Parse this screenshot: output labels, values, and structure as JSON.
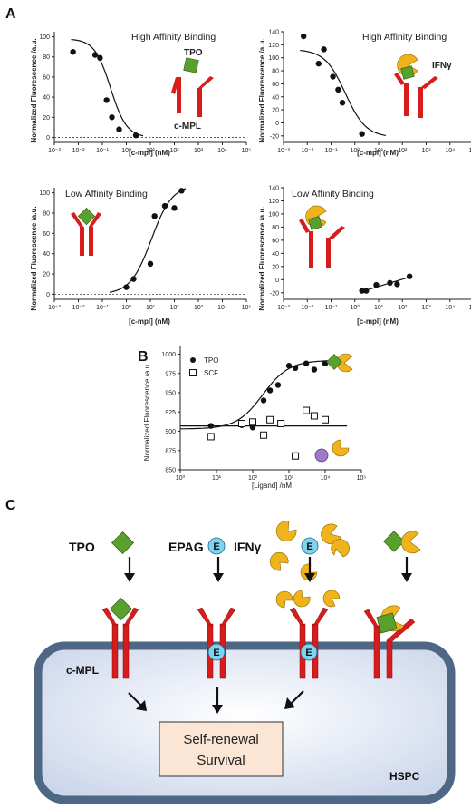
{
  "labels": {
    "panel_a": "A",
    "panel_b": "B",
    "panel_c": "C"
  },
  "panel_a": {
    "xlabel": "[c-mpl] (nM)",
    "ylabel": "Normalized Fluorescence /a.u.",
    "x_tick_labels": [
      "10⁻³",
      "10⁻²",
      "10⁻¹",
      "10⁰",
      "10¹",
      "10²",
      "10³",
      "10⁴",
      "10⁵"
    ],
    "titles": [
      "High Affinity Binding",
      "High Affinity Binding",
      "Low Affinity Binding",
      "Low Affinity Binding"
    ],
    "mol_labels": {
      "tpo": "TPO",
      "cmpl": "c-MPL",
      "ifng": "IFNγ"
    }
  },
  "panel_b": {
    "xlabel": "[Ligand] /nM",
    "ylabel": "Normalized Fluorescence /a.u.",
    "x_tick_labels": [
      "10⁰",
      "10¹",
      "10²",
      "10³",
      "10⁴",
      "10⁵"
    ],
    "legend": [
      "TPO",
      "SCF"
    ]
  },
  "panel_c": {
    "ligands": {
      "tpo": "TPO",
      "epag": "EPAG",
      "ifng": "IFNγ",
      "e_glyph": "E"
    },
    "receptor_label": "c-MPL",
    "cell_label": "HSPC",
    "outcome_line1": "Self-renewal",
    "outcome_line2": "Survival"
  },
  "colors": {
    "receptor": "#d81c1c",
    "tpo": "#5aa02c",
    "ifng": "#f0b31c",
    "epag": "#7fd3ee",
    "membrane": "#4e6784",
    "cell": "#dce4f2",
    "box": "#fbe6d6"
  },
  "chart_data": [
    {
      "type": "scatter",
      "title": "High Affinity Binding",
      "xlabel": "[c-mpl] (nM)",
      "ylabel": "Normalized Fluorescence /a.u.",
      "xscale": "log",
      "xlim": [
        0.001,
        100000
      ],
      "ylim": [
        -5,
        105
      ],
      "yticks": [
        0,
        20,
        40,
        60,
        80,
        100
      ],
      "dotted_zero_line": true,
      "x": [
        0.006,
        0.05,
        0.08,
        0.15,
        0.25,
        0.5,
        2.5
      ],
      "y": [
        85,
        82,
        79,
        37,
        20,
        8,
        2
      ],
      "fit": {
        "type": "sigmoid_decreasing",
        "top": 98,
        "bottom": 0,
        "ec50": 0.22,
        "hill": 1.3,
        "x_range": [
          0.005,
          5
        ]
      }
    },
    {
      "type": "scatter",
      "title": "High Affinity Binding",
      "xlabel": "[c-mpl] (nM)",
      "ylabel": "Normalized Fluorescence /a.u.",
      "xscale": "log",
      "xlim": [
        0.001,
        100000
      ],
      "ylim": [
        -30,
        140
      ],
      "yticks": [
        -20,
        0,
        20,
        40,
        60,
        80,
        100,
        120,
        140
      ],
      "x": [
        0.007,
        0.03,
        0.05,
        0.12,
        0.2,
        0.3,
        2.0
      ],
      "y": [
        133,
        91,
        113,
        71,
        51,
        31,
        -17
      ],
      "fit": {
        "type": "sigmoid_decreasing",
        "top": 113,
        "bottom": -22,
        "ec50": 0.4,
        "hill": 1.0,
        "x_range": [
          0.005,
          20
        ]
      }
    },
    {
      "type": "scatter",
      "title": "Low Affinity Binding",
      "xlabel": "[c-mpl] (nM)",
      "ylabel": "Normalized Fluorescence /a.u.",
      "xscale": "log",
      "xlim": [
        0.001,
        100000
      ],
      "ylim": [
        -5,
        105
      ],
      "yticks": [
        0,
        20,
        40,
        60,
        80,
        100
      ],
      "dotted_zero_line": true,
      "x": [
        1.0,
        2.0,
        10,
        15,
        40,
        100,
        200
      ],
      "y": [
        7,
        15,
        30,
        77,
        87,
        85,
        102
      ],
      "fit": {
        "type": "sigmoid_increasing",
        "top": 108,
        "bottom": 0,
        "ec50": 11,
        "hill": 1.0,
        "x_range": [
          0.2,
          300
        ]
      }
    },
    {
      "type": "scatter",
      "title": "Low Affinity Binding",
      "xlabel": "[c-mpl] (nM)",
      "ylabel": "Normalized Fluorescence /a.u.",
      "xscale": "log",
      "xlim": [
        0.001,
        100000
      ],
      "ylim": [
        -30,
        140
      ],
      "yticks": [
        -20,
        0,
        20,
        40,
        60,
        80,
        100,
        120,
        140
      ],
      "x": [
        2,
        3,
        8,
        30,
        60,
        200
      ],
      "y": [
        -17,
        -17,
        -8,
        -5,
        -7,
        5
      ],
      "fit": {
        "type": "linear_log",
        "x_range": [
          2,
          200
        ],
        "y_range": [
          -18,
          4
        ]
      }
    },
    {
      "type": "scatter",
      "title": "",
      "xlabel": "[Ligand] /nM",
      "ylabel": "Normalized Fluorescence /a.u.",
      "xscale": "log",
      "xlim": [
        1,
        100000
      ],
      "ylim": [
        850,
        1010
      ],
      "yticks": [
        850,
        875,
        900,
        925,
        950,
        975,
        1000
      ],
      "legend": "top-left",
      "series": [
        {
          "name": "TPO",
          "marker": "filled-circle",
          "x": [
            7,
            50,
            100,
            200,
            300,
            500,
            1000,
            1500,
            3000,
            5000,
            10000
          ],
          "y": [
            907,
            908,
            905,
            940,
            953,
            960,
            985,
            982,
            988,
            980,
            988
          ],
          "fit": {
            "type": "sigmoid_increasing",
            "top": 992,
            "bottom": 903,
            "ec50": 190,
            "hill": 1.2,
            "x_range": [
              1,
              40000
            ]
          }
        },
        {
          "name": "SCF",
          "marker": "open-square",
          "x": [
            7,
            50,
            100,
            200,
            300,
            600,
            1500,
            3000,
            5000,
            10000
          ],
          "y": [
            893,
            910,
            912,
            895,
            915,
            910,
            868,
            927,
            920,
            915
          ],
          "fit": {
            "type": "flat",
            "y": 907,
            "x_range": [
              1,
              40000
            ]
          }
        }
      ]
    }
  ]
}
